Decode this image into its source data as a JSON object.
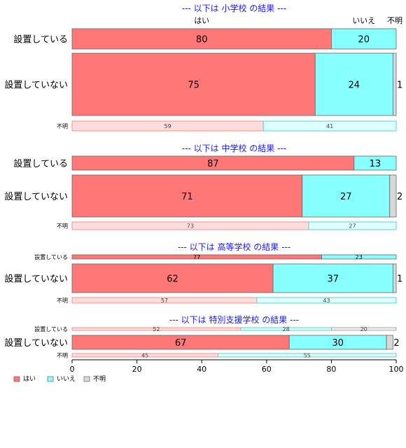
{
  "chart_data": {
    "type": "bar",
    "orientation": "horizontal",
    "stacked": true,
    "xlim": [
      0,
      100
    ],
    "x_ticks": [
      0,
      20,
      40,
      60,
      80,
      100
    ],
    "grid": false,
    "legend_position": "bottom-left",
    "legend": [
      {
        "label": "はい",
        "color": "#ff7777"
      },
      {
        "label": "いいえ",
        "color": "#88ffff"
      },
      {
        "label": "不明",
        "color": "#d9d9d9"
      }
    ],
    "header_labels": [
      "はい",
      "いいえ",
      "不明"
    ],
    "panels": [
      {
        "title": "--- 以下は 小学校 の結果 ---",
        "rows": [
          {
            "label": "設置している",
            "values": [
              80,
              20,
              0
            ],
            "labels": [
              "80",
              "20",
              ""
            ]
          },
          {
            "label": "設置していない",
            "values": [
              75,
              24,
              1
            ],
            "labels": [
              "75",
              "24",
              "1"
            ]
          },
          {
            "label": "不明",
            "values": [
              59,
              41,
              0
            ],
            "labels": [
              "59",
              "41",
              ""
            ],
            "muted": true
          }
        ]
      },
      {
        "title": "--- 以下は 中学校 の結果 ---",
        "rows": [
          {
            "label": "設置している",
            "values": [
              87,
              13,
              0
            ],
            "labels": [
              "87",
              "13",
              ""
            ]
          },
          {
            "label": "設置していない",
            "values": [
              71,
              27,
              2
            ],
            "labels": [
              "71",
              "27",
              "2"
            ]
          },
          {
            "label": "不明",
            "values": [
              73,
              27,
              0
            ],
            "labels": [
              "73",
              "27",
              ""
            ],
            "muted": true
          }
        ]
      },
      {
        "title": "--- 以下は 高等学校 の結果 ---",
        "rows": [
          {
            "label": "設置している",
            "values": [
              77,
              23,
              0
            ],
            "labels": [
              "77",
              "23",
              ""
            ]
          },
          {
            "label": "設置していない",
            "values": [
              62,
              37,
              1
            ],
            "labels": [
              "62",
              "37",
              "1"
            ]
          },
          {
            "label": "不明",
            "values": [
              57,
              43,
              0
            ],
            "labels": [
              "57",
              "43",
              ""
            ],
            "muted": true
          }
        ]
      },
      {
        "title": "--- 以下は 特別支援学校 の結果 ---",
        "rows": [
          {
            "label": "設置している",
            "values": [
              52,
              28,
              20
            ],
            "labels": [
              "52",
              "28",
              "20"
            ],
            "muted": true
          },
          {
            "label": "設置していない",
            "values": [
              67,
              30,
              2
            ],
            "labels": [
              "67",
              "30",
              "2"
            ]
          },
          {
            "label": "不明",
            "values": [
              45,
              55,
              0
            ],
            "labels": [
              "45",
              "55",
              ""
            ],
            "muted": true
          }
        ]
      }
    ]
  }
}
